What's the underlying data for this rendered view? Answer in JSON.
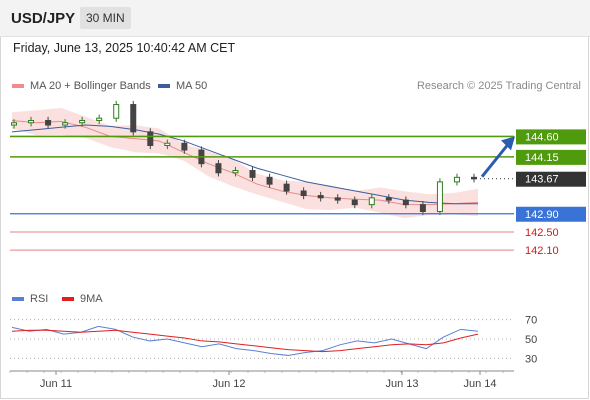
{
  "header": {
    "symbol": "USD/JPY",
    "timeframe": "30 MIN"
  },
  "timestamp": "Friday, June 13, 2025 10:40:42 AM CET",
  "credit": "Research © 2025 Trading Central",
  "legend": {
    "main": [
      {
        "label": "MA 20 + Bollinger Bands",
        "color": "#f28b8b"
      },
      {
        "label": "MA 50",
        "color": "#3d5e9e"
      }
    ],
    "rsi": [
      {
        "label": "RSI",
        "color": "#5b7fd6"
      },
      {
        "label": "9MA",
        "color": "#e02020"
      }
    ]
  },
  "colors": {
    "up": "#2e7d1f",
    "down": "#444444",
    "bands": "#fbe0e0",
    "ma20": "#e88b8b",
    "ma50": "#3d5e9e",
    "resistance": "#4f9a0d",
    "pivot": "#3a73d6",
    "support": "#e08585",
    "current": "#333333"
  },
  "chart_data": [
    {
      "type": "line",
      "title": "USD/JPY 30 MIN",
      "x_ticks": [
        "Jun 11",
        "Jun 12",
        "Jun 13",
        "Jun 14"
      ],
      "ylim": [
        141.4,
        145.4
      ],
      "series": [
        {
          "name": "MA 20 + Bollinger Bands",
          "values": [
            144.95,
            144.9,
            144.93,
            144.8,
            144.6,
            144.55,
            144.5,
            144.25,
            144.0,
            143.8,
            143.55,
            143.4,
            143.3,
            143.25,
            143.22,
            143.2,
            143.1,
            143.1,
            143.12,
            143.15
          ]
        },
        {
          "name": "MA 50",
          "values": [
            144.7,
            144.75,
            144.8,
            144.85,
            144.82,
            144.75,
            144.65,
            144.5,
            144.3,
            144.1,
            143.9,
            143.75,
            143.6,
            143.5,
            143.4,
            143.3,
            143.2,
            143.15,
            143.12,
            143.12
          ]
        }
      ],
      "close": [
        144.9,
        144.95,
        144.85,
        144.9,
        144.95,
        145.0,
        145.3,
        144.7,
        144.4,
        144.45,
        144.3,
        144.0,
        143.8,
        143.85,
        143.7,
        143.55,
        143.4,
        143.3,
        143.25,
        143.2,
        143.1,
        143.25,
        143.2,
        143.1,
        142.95,
        143.6,
        143.7,
        143.67
      ],
      "levels": [
        {
          "label": "144.60",
          "value": 144.6,
          "kind": "resistance"
        },
        {
          "label": "144.15",
          "value": 144.15,
          "kind": "resistance"
        },
        {
          "label": "143.67",
          "value": 143.67,
          "kind": "current"
        },
        {
          "label": "142.90",
          "value": 142.9,
          "kind": "pivot"
        },
        {
          "label": "142.50",
          "value": 142.5,
          "kind": "support"
        },
        {
          "label": "142.10",
          "value": 142.1,
          "kind": "support"
        }
      ]
    },
    {
      "type": "line",
      "title": "RSI",
      "y_ticks": [
        "70",
        "50",
        "30"
      ],
      "ylim": [
        20,
        80
      ],
      "series": [
        {
          "name": "RSI",
          "values": [
            62,
            58,
            60,
            55,
            57,
            63,
            60,
            52,
            48,
            50,
            46,
            42,
            45,
            40,
            38,
            35,
            33,
            36,
            38,
            44,
            48,
            46,
            50,
            45,
            40,
            52,
            60,
            58
          ]
        },
        {
          "name": "9MA",
          "values": [
            58,
            59,
            59,
            58,
            57,
            58,
            59,
            57,
            55,
            53,
            51,
            48,
            47,
            45,
            43,
            41,
            39,
            38,
            37,
            38,
            40,
            42,
            44,
            45,
            44,
            46,
            51,
            55
          ]
        }
      ]
    }
  ]
}
